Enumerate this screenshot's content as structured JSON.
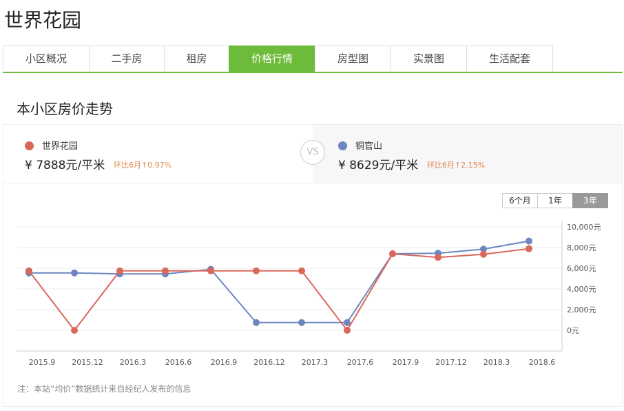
{
  "title": "世界花园",
  "tabs": [
    "小区概况",
    "二手房",
    "租房",
    "价格行情",
    "房型图",
    "实景图",
    "生活配套"
  ],
  "active_tab": 3,
  "section_title": "本小区房价走势",
  "compare": {
    "a": {
      "name": "世界花园",
      "price": "¥ 7888元/平米",
      "change": "环比6月↑0.97%",
      "color": "#d9685a"
    },
    "vs": "VS",
    "b": {
      "name": "铜官山",
      "price": "¥ 8629元/平米",
      "change": "环比6月↑2.15%",
      "color": "#6d86bf"
    }
  },
  "range": {
    "options": [
      "6个月",
      "1年",
      "3年"
    ],
    "selected": 2
  },
  "note": "注：本站“均价”数据统计来自经纪人发布的信息",
  "chart_data": {
    "type": "line",
    "categories": [
      "2015.9",
      "2015.12",
      "2016.3",
      "2016.6",
      "2016.9",
      "2016.12",
      "2017.3",
      "2017.6",
      "2017.9",
      "2017.12",
      "2018.3",
      "2018.6"
    ],
    "yticks": [
      "0元",
      "2,000元",
      "4,000元",
      "6,000元",
      "8,000元",
      "10,000元"
    ],
    "ylim": [
      0,
      10000
    ],
    "grid": true,
    "series": [
      {
        "name": "世界花园",
        "color": "#d9685a",
        "values": [
          5750,
          0,
          5750,
          5750,
          5750,
          5750,
          5750,
          0,
          7400,
          7050,
          7350,
          7888
        ]
      },
      {
        "name": "铜官山",
        "color": "#6d86bf",
        "values": [
          5550,
          5550,
          5450,
          5450,
          5900,
          750,
          750,
          750,
          7400,
          7450,
          7850,
          8629
        ]
      }
    ]
  }
}
